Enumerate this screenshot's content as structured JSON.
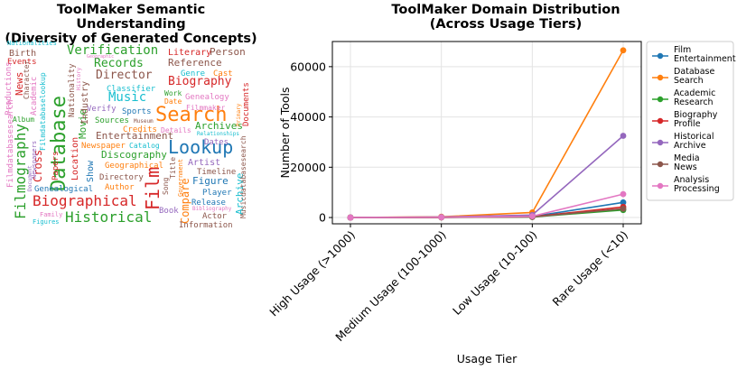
{
  "wordcloud": {
    "title_line1": "ToolMaker Semantic Understanding",
    "title_line2": "(Diversity of Generated Concepts)",
    "words": [
      {
        "text": "Database",
        "color": "#2ca02c"
      },
      {
        "text": "Search",
        "color": "#ff7f0e"
      },
      {
        "text": "Lookup",
        "color": "#1f77b4"
      },
      {
        "text": "Historical",
        "color": "#2ca02c"
      },
      {
        "text": "Biographical",
        "color": "#d62728"
      },
      {
        "text": "Filmography",
        "color": "#2ca02c"
      },
      {
        "text": "Film",
        "color": "#d62728"
      },
      {
        "text": "Verification",
        "color": "#2ca02c"
      },
      {
        "text": "Records",
        "color": "#2ca02c"
      },
      {
        "text": "Director",
        "color": "#8c564b"
      },
      {
        "text": "Biography",
        "color": "#d62728"
      },
      {
        "text": "Music",
        "color": "#17becf"
      },
      {
        "text": "Reference",
        "color": "#8c564b"
      },
      {
        "text": "Entertainment",
        "color": "#8c564b"
      },
      {
        "text": "Discography",
        "color": "#2ca02c"
      },
      {
        "text": "Archives",
        "color": "#2ca02c"
      },
      {
        "text": "Movie",
        "color": "#2ca02c"
      },
      {
        "text": "Cross",
        "color": "#d62728"
      },
      {
        "text": "Compare",
        "color": "#ff7f0e"
      },
      {
        "text": "Archive",
        "color": "#17becf"
      },
      {
        "text": "Literary",
        "color": "#d62728"
      },
      {
        "text": "Person",
        "color": "#8c564b"
      },
      {
        "text": "Genre",
        "color": "#17becf"
      },
      {
        "text": "Cast",
        "color": "#ff7f0e"
      },
      {
        "text": "Classifier",
        "color": "#17becf"
      },
      {
        "text": "Genealogy",
        "color": "#e377c2"
      },
      {
        "text": "Work",
        "color": "#2ca02c"
      },
      {
        "text": "Date",
        "color": "#ff7f0e"
      },
      {
        "text": "Filmmaker",
        "color": "#e377c2"
      },
      {
        "text": "Sports",
        "color": "#1f77b4"
      },
      {
        "text": "Verify",
        "color": "#9467bd"
      },
      {
        "text": "Sources",
        "color": "#2ca02c"
      },
      {
        "text": "Museum",
        "color": "#8c564b"
      },
      {
        "text": "Credits",
        "color": "#ff7f0e"
      },
      {
        "text": "Details",
        "color": "#e377c2"
      },
      {
        "text": "Relationships",
        "color": "#17becf"
      },
      {
        "text": "Dates",
        "color": "#9467bd"
      },
      {
        "text": "Newspaper",
        "color": "#ff7f0e"
      },
      {
        "text": "Catalog",
        "color": "#17becf"
      },
      {
        "text": "Geographical",
        "color": "#ff7f0e"
      },
      {
        "text": "Artist",
        "color": "#9467bd"
      },
      {
        "text": "Timeline",
        "color": "#8c564b"
      },
      {
        "text": "Directory",
        "color": "#8c564b"
      },
      {
        "text": "Author",
        "color": "#ff7f0e"
      },
      {
        "text": "Figure",
        "color": "#1f77b4"
      },
      {
        "text": "Player",
        "color": "#1f77b4"
      },
      {
        "text": "Release",
        "color": "#1f77b4"
      },
      {
        "text": "Bibliography",
        "color": "#e377c2"
      },
      {
        "text": "Book",
        "color": "#9467bd"
      },
      {
        "text": "Actor",
        "color": "#8c564b"
      },
      {
        "text": "Information",
        "color": "#8c564b"
      },
      {
        "text": "Genealogical",
        "color": "#1f77b4"
      },
      {
        "text": "Family",
        "color": "#e377c2"
      },
      {
        "text": "Figures",
        "color": "#17becf"
      },
      {
        "text": "Nationalities",
        "color": "#17becf"
      },
      {
        "text": "Birth",
        "color": "#8c564b"
      },
      {
        "text": "Events",
        "color": "#d62728"
      },
      {
        "text": "Geographic",
        "color": "#e377c2"
      },
      {
        "text": "Academic",
        "color": "#e377c2"
      },
      {
        "text": "Nationality",
        "color": "#8c564b"
      },
      {
        "text": "Industry",
        "color": "#8c564b"
      },
      {
        "text": "History",
        "color": "#e377c2"
      },
      {
        "text": "Character",
        "color": "#8c564b"
      },
      {
        "text": "Album",
        "color": "#2ca02c"
      },
      {
        "text": "Productions",
        "color": "#e377c2"
      },
      {
        "text": "News",
        "color": "#d62728"
      },
      {
        "text": "Newspapers",
        "color": "#9467bd"
      },
      {
        "text": "Document",
        "color": "#9467bd"
      },
      {
        "text": "Filmdatabaselookup",
        "color": "#17becf"
      },
      {
        "text": "Filmdatabasesearch",
        "color": "#e377c2"
      },
      {
        "text": "Location",
        "color": "#d62728"
      },
      {
        "text": "Papers",
        "color": "#d62728"
      },
      {
        "text": "Show",
        "color": "#1f77b4"
      },
      {
        "text": "Song",
        "color": "#8c564b"
      },
      {
        "text": "Title",
        "color": "#8c564b"
      },
      {
        "text": "Government",
        "color": "#ff7f0e"
      },
      {
        "text": "Primary",
        "color": "#ff7f0e"
      },
      {
        "text": "Documents",
        "color": "#d62728"
      },
      {
        "text": "Musicdatabasesearch",
        "color": "#8c564b"
      }
    ]
  },
  "chart_data": {
    "type": "line",
    "title": "ToolMaker Domain Distribution",
    "subtitle": "(Across Usage Tiers)",
    "xlabel": "Usage Tier",
    "ylabel": "Number of Tools",
    "categories": [
      "High Usage (>1000)",
      "Medium Usage (100-1000)",
      "Low Usage (10-100)",
      "Rare Usage (<10)"
    ],
    "ylim": [
      -2500,
      70000
    ],
    "yticks": [
      0,
      20000,
      40000,
      60000
    ],
    "ytick_labels": [
      "0",
      "20000",
      "40000",
      "60000"
    ],
    "grid": true,
    "legend_position": "right, outside",
    "series": [
      {
        "name": "Film Entertainment",
        "legend": [
          "Film",
          "Entertainment"
        ],
        "color": "#1f77b4",
        "values": [
          0,
          100,
          400,
          6000
        ]
      },
      {
        "name": "Database Search",
        "legend": [
          "Database",
          "Search"
        ],
        "color": "#ff7f0e",
        "values": [
          0,
          300,
          2000,
          66500
        ]
      },
      {
        "name": "Academic Research",
        "legend": [
          "Academic",
          "Research"
        ],
        "color": "#2ca02c",
        "values": [
          0,
          50,
          200,
          3000
        ]
      },
      {
        "name": "Biography Profile",
        "legend": [
          "Biography",
          "Profile"
        ],
        "color": "#d62728",
        "values": [
          0,
          50,
          300,
          4200
        ]
      },
      {
        "name": "Historical Archive",
        "legend": [
          "Historical",
          "Archive"
        ],
        "color": "#9467bd",
        "values": [
          0,
          200,
          1000,
          32500
        ]
      },
      {
        "name": "Media News",
        "legend": [
          "Media",
          "News"
        ],
        "color": "#8c564b",
        "values": [
          0,
          50,
          250,
          3500
        ]
      },
      {
        "name": "Analysis Processing",
        "legend": [
          "Analysis",
          "Processing"
        ],
        "color": "#e377c2",
        "values": [
          0,
          100,
          500,
          9300
        ]
      }
    ]
  }
}
